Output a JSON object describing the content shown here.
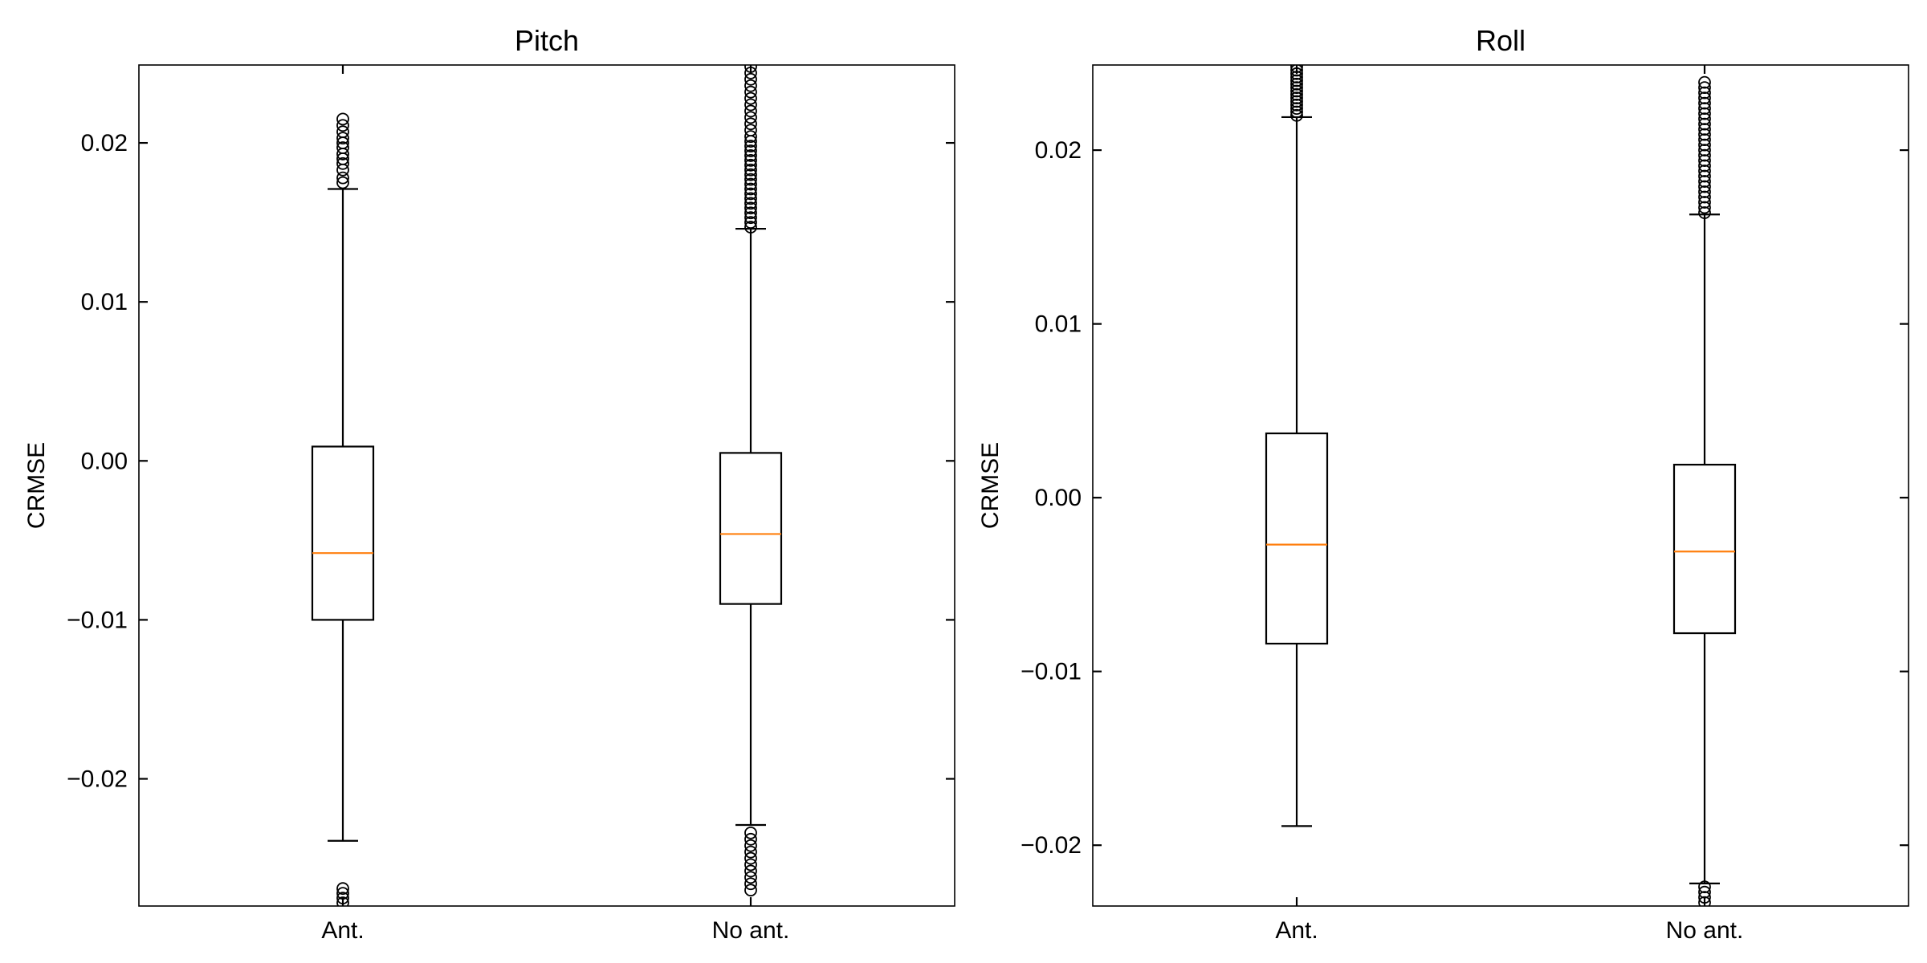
{
  "chart_data": [
    {
      "type": "box",
      "title": "Pitch",
      "xlabel": "",
      "ylabel": "CRMSE",
      "ylim": [
        -0.028,
        0.0249
      ],
      "yticks": [
        -0.02,
        -0.01,
        0.0,
        0.01,
        0.02
      ],
      "ytick_labels": [
        "−0.02",
        "−0.01",
        "0.00",
        "0.01",
        "0.02"
      ],
      "categories": [
        "Ant.",
        "No ant."
      ],
      "boxes": [
        {
          "category": "Ant.",
          "whisker_low": -0.0239,
          "q1": -0.01,
          "median": -0.0058,
          "q3": 0.0009,
          "whisker_high": 0.0171,
          "outliers": [
            0.0175,
            0.0178,
            0.0183,
            0.0187,
            0.019,
            0.0193,
            0.0197,
            0.02,
            0.0203,
            0.0207,
            0.0211,
            0.0215,
            -0.0269,
            -0.0272,
            -0.0275,
            -0.0278
          ]
        },
        {
          "category": "No ant.",
          "whisker_low": -0.0229,
          "q1": -0.009,
          "median": -0.0046,
          "q3": 0.0005,
          "whisker_high": 0.0146,
          "outliers": [
            0.0147,
            0.015,
            0.0153,
            0.0156,
            0.0159,
            0.0162,
            0.0165,
            0.0168,
            0.0171,
            0.0174,
            0.0177,
            0.018,
            0.0183,
            0.0186,
            0.0189,
            0.0192,
            0.0195,
            0.0198,
            0.0201,
            0.0204,
            0.0208,
            0.0212,
            0.0216,
            0.022,
            0.0224,
            0.0228,
            0.0232,
            0.0236,
            0.024,
            0.0244,
            0.0248,
            -0.0234,
            -0.0238,
            -0.0242,
            -0.0246,
            -0.025,
            -0.0254,
            -0.0258,
            -0.0262,
            -0.0266,
            -0.027
          ]
        }
      ]
    },
    {
      "type": "box",
      "title": "Roll",
      "xlabel": "",
      "ylabel": "CRMSE",
      "ylim": [
        -0.0235,
        0.0249
      ],
      "yticks": [
        -0.02,
        -0.01,
        0.0,
        0.01,
        0.02
      ],
      "ytick_labels": [
        "−0.02",
        "−0.01",
        "0.00",
        "0.01",
        "0.02"
      ],
      "categories": [
        "Ant.",
        "No ant."
      ],
      "boxes": [
        {
          "category": "Ant.",
          "whisker_low": -0.0189,
          "q1": -0.0084,
          "median": -0.0027,
          "q3": 0.0037,
          "whisker_high": 0.0219,
          "outliers": [
            0.022,
            0.0222,
            0.0224,
            0.0226,
            0.0228,
            0.023,
            0.0232,
            0.0234,
            0.0236,
            0.0238,
            0.024,
            0.0242,
            0.0244,
            0.0246,
            0.0248
          ]
        },
        {
          "category": "No ant.",
          "whisker_low": -0.0222,
          "q1": -0.0078,
          "median": -0.0031,
          "q3": 0.0019,
          "whisker_high": 0.0163,
          "outliers": [
            0.0164,
            0.0167,
            0.017,
            0.0173,
            0.0176,
            0.0179,
            0.0182,
            0.0185,
            0.0188,
            0.0191,
            0.0194,
            0.0197,
            0.02,
            0.0203,
            0.0206,
            0.0209,
            0.0212,
            0.0215,
            0.0218,
            0.0221,
            0.0224,
            0.0227,
            0.023,
            0.0233,
            0.0236,
            0.0239,
            -0.0224,
            -0.0227,
            -0.023,
            -0.0233
          ]
        }
      ]
    }
  ],
  "colors": {
    "box": "#000000",
    "median": "#ff7f0e",
    "background": "#ffffff"
  }
}
